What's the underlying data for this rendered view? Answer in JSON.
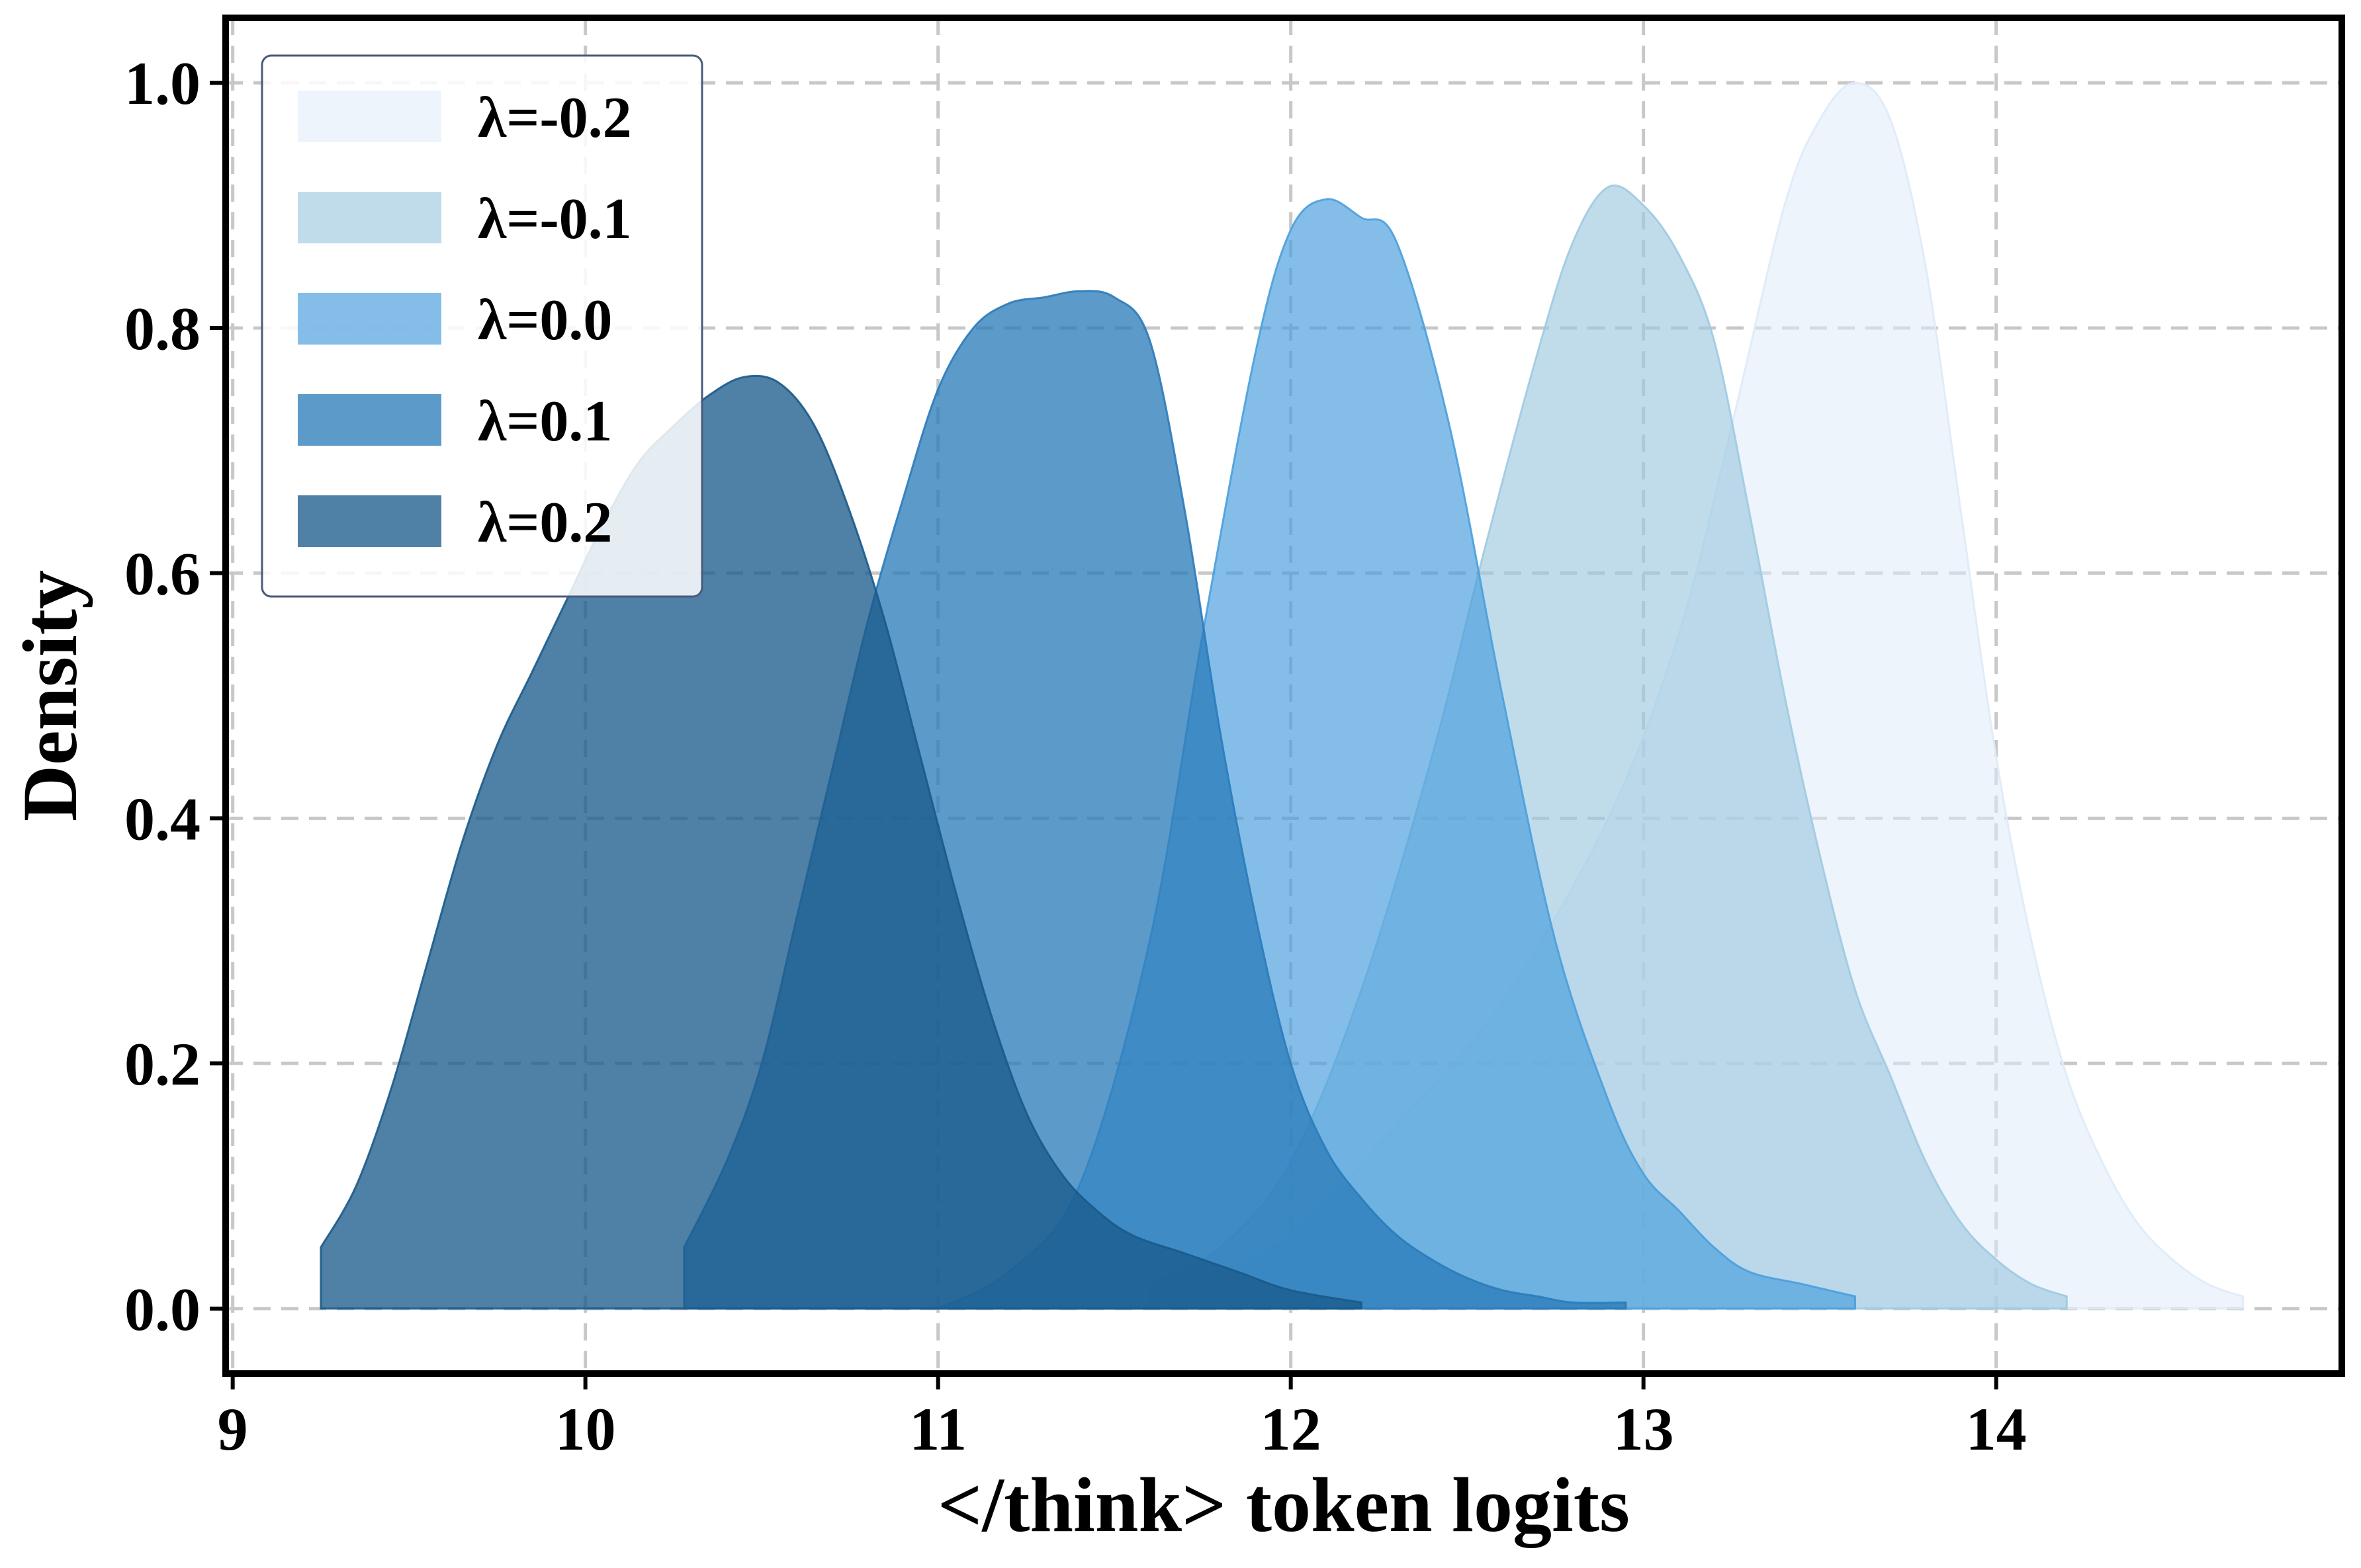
{
  "chart_data": {
    "type": "area",
    "xlabel": "</think> token logits",
    "ylabel": "Density",
    "xlim": [
      8.98,
      14.98
    ],
    "ylim": [
      -0.053,
      1.053
    ],
    "xticks": [
      9,
      10,
      11,
      12,
      13,
      14
    ],
    "yticks": [
      0.0,
      0.2,
      0.4,
      0.6,
      0.8,
      1.0
    ],
    "ytick_labels": [
      "0.0",
      "0.2",
      "0.4",
      "0.6",
      "0.8",
      "1.0"
    ],
    "grid": true,
    "legend_position": "top-left",
    "series": [
      {
        "name": "λ=-0.2",
        "color": "#deebf7",
        "opacity": 0.55,
        "x": [
          11.1,
          11.4,
          11.7,
          12.0,
          12.3,
          12.6,
          12.9,
          13.1,
          13.25,
          13.4,
          13.5,
          13.6,
          13.7,
          13.8,
          13.9,
          14.0,
          14.1,
          14.2,
          14.3,
          14.4,
          14.5,
          14.6,
          14.7
        ],
        "y": [
          0.0,
          0.005,
          0.02,
          0.06,
          0.15,
          0.25,
          0.4,
          0.55,
          0.72,
          0.9,
          0.97,
          1.0,
          0.97,
          0.85,
          0.65,
          0.45,
          0.3,
          0.19,
          0.12,
          0.07,
          0.04,
          0.02,
          0.01
        ]
      },
      {
        "name": "λ=-0.1",
        "color": "#9ecae1",
        "opacity": 0.65,
        "x": [
          11.6,
          11.8,
          12.0,
          12.2,
          12.4,
          12.55,
          12.7,
          12.8,
          12.9,
          13.0,
          13.1,
          13.2,
          13.3,
          13.4,
          13.5,
          13.6,
          13.7,
          13.8,
          13.9,
          14.0,
          14.1,
          14.2
        ],
        "y": [
          0.02,
          0.05,
          0.12,
          0.26,
          0.45,
          0.62,
          0.78,
          0.87,
          0.915,
          0.9,
          0.86,
          0.79,
          0.65,
          0.5,
          0.37,
          0.26,
          0.19,
          0.12,
          0.07,
          0.04,
          0.02,
          0.01
        ]
      },
      {
        "name": "λ=0.0",
        "color": "#4a9fdd",
        "opacity": 0.68,
        "x": [
          11.0,
          11.2,
          11.4,
          11.6,
          11.75,
          11.9,
          12.0,
          12.1,
          12.2,
          12.3,
          12.45,
          12.6,
          12.75,
          12.9,
          13.0,
          13.1,
          13.2,
          13.3,
          13.45,
          13.6
        ],
        "y": [
          0.0,
          0.03,
          0.1,
          0.3,
          0.55,
          0.78,
          0.88,
          0.905,
          0.89,
          0.87,
          0.72,
          0.5,
          0.3,
          0.17,
          0.11,
          0.08,
          0.05,
          0.03,
          0.02,
          0.01
        ]
      },
      {
        "name": "λ=0.1",
        "color": "#2b7bba",
        "opacity": 0.77,
        "x": [
          10.28,
          10.4,
          10.5,
          10.6,
          10.7,
          10.8,
          10.9,
          11.0,
          11.1,
          11.2,
          11.3,
          11.4,
          11.5,
          11.6,
          11.7,
          11.8,
          11.9,
          12.0,
          12.1,
          12.2,
          12.3,
          12.4,
          12.5,
          12.6,
          12.7,
          12.8,
          12.95
        ],
        "y": [
          0.05,
          0.12,
          0.2,
          0.32,
          0.44,
          0.56,
          0.66,
          0.75,
          0.8,
          0.82,
          0.825,
          0.83,
          0.825,
          0.79,
          0.65,
          0.47,
          0.32,
          0.2,
          0.13,
          0.09,
          0.06,
          0.04,
          0.025,
          0.015,
          0.01,
          0.005,
          0.005
        ]
      },
      {
        "name": "λ=0.2",
        "color": "#1a5a8a",
        "opacity": 0.77,
        "x": [
          9.25,
          9.35,
          9.45,
          9.55,
          9.65,
          9.75,
          9.85,
          9.95,
          10.05,
          10.15,
          10.25,
          10.35,
          10.45,
          10.55,
          10.65,
          10.75,
          10.85,
          10.95,
          11.05,
          11.15,
          11.25,
          11.35,
          11.45,
          11.55,
          11.7,
          11.85,
          12.0,
          12.2
        ],
        "y": [
          0.05,
          0.1,
          0.18,
          0.28,
          0.38,
          0.46,
          0.52,
          0.58,
          0.64,
          0.69,
          0.72,
          0.745,
          0.76,
          0.755,
          0.72,
          0.65,
          0.56,
          0.45,
          0.34,
          0.24,
          0.16,
          0.11,
          0.08,
          0.06,
          0.045,
          0.03,
          0.015,
          0.005
        ]
      }
    ]
  }
}
